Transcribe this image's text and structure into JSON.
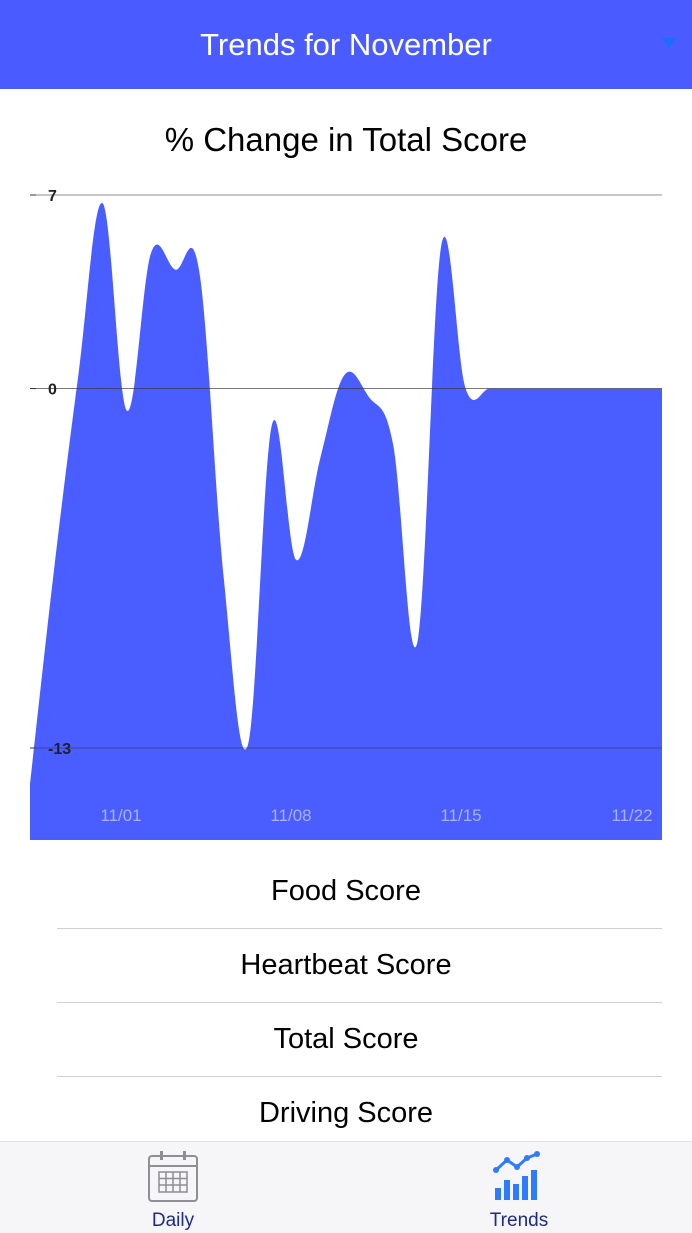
{
  "header": {
    "title": "Trends for November",
    "dropdown_icon": "caret-down-icon"
  },
  "colors": {
    "accent": "#4a5cff",
    "chart_fill": "#4a5eff",
    "tab_active": "#2f7bff"
  },
  "chart_data": {
    "type": "area",
    "title": "% Change in Total Score",
    "xlabel": "",
    "ylabel": "",
    "ylim": [
      -13,
      7
    ],
    "yticks": [
      7,
      0,
      -13
    ],
    "ytick_labels": [
      "7",
      "0",
      "-13"
    ],
    "xticks": [
      "11/01",
      "11/08",
      "11/15",
      "11/22"
    ],
    "grid": true,
    "x": [
      "10/29",
      "10/30",
      "10/31",
      "11/01",
      "11/02",
      "11/03",
      "11/04",
      "11/05",
      "11/06",
      "11/07",
      "11/08",
      "11/09",
      "11/10",
      "11/11",
      "11/12",
      "11/13",
      "11/14",
      "11/15",
      "11/16",
      "11/17",
      "11/18",
      "11/19",
      "11/20",
      "11/21",
      "11/22",
      "11/23"
    ],
    "values": [
      -14.3,
      -6.5,
      0.5,
      6.7,
      -0.8,
      4.9,
      4.3,
      4.2,
      -6.8,
      -12.9,
      -1.3,
      -6.2,
      -2.5,
      0.5,
      -0.3,
      -2.0,
      -9.2,
      5.2,
      0,
      0,
      0,
      0,
      0,
      0,
      0,
      0
    ]
  },
  "menu": {
    "items": [
      "Food Score",
      "Heartbeat Score",
      "Total Score",
      "Driving Score"
    ]
  },
  "tabbar": {
    "tabs": [
      {
        "label": "Daily",
        "icon": "calendar-icon"
      },
      {
        "label": "Trends",
        "icon": "trend-chart-icon"
      }
    ]
  }
}
